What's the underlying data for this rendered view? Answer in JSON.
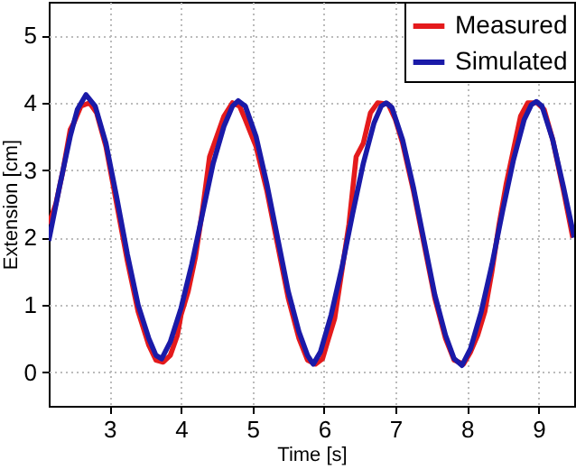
{
  "chart_data": {
    "type": "line",
    "xlabel": "Time [s]",
    "ylabel": "Extension [cm]",
    "xlim": [
      2.15,
      9.5
    ],
    "ylim": [
      -0.5,
      5.5
    ],
    "xticks": [
      3,
      4,
      5,
      6,
      7,
      8,
      9
    ],
    "yticks": [
      0,
      1,
      2,
      3,
      4,
      5
    ],
    "grid": true,
    "legend": "top right",
    "line_style": "solid",
    "marker": "none",
    "series": [
      {
        "name": "Measured",
        "color": "#e41a1c",
        "x": [
          2.15,
          2.25,
          2.35,
          2.45,
          2.5,
          2.6,
          2.72,
          2.82,
          2.95,
          3.1,
          3.25,
          3.4,
          3.55,
          3.65,
          3.75,
          3.85,
          3.95,
          4.0,
          4.1,
          4.2,
          4.3,
          4.4,
          4.5,
          4.6,
          4.72,
          4.82,
          4.9,
          5.05,
          5.2,
          5.35,
          5.5,
          5.65,
          5.77,
          5.88,
          5.98,
          6.05,
          6.15,
          6.25,
          6.35,
          6.45,
          6.55,
          6.65,
          6.75,
          6.9,
          7.0,
          7.1,
          7.25,
          7.4,
          7.55,
          7.7,
          7.82,
          7.95,
          8.05,
          8.15,
          8.25,
          8.35,
          8.45,
          8.55,
          8.65,
          8.75,
          8.85,
          8.98,
          9.08,
          9.2,
          9.35,
          9.48
        ],
        "values": [
          2.2,
          2.5,
          3.0,
          3.6,
          3.7,
          3.95,
          4.0,
          3.85,
          3.35,
          2.5,
          1.65,
          0.9,
          0.4,
          0.18,
          0.15,
          0.25,
          0.55,
          0.85,
          1.2,
          1.7,
          2.4,
          3.2,
          3.5,
          3.8,
          4.0,
          3.95,
          3.75,
          3.35,
          2.7,
          1.9,
          1.1,
          0.5,
          0.18,
          0.12,
          0.2,
          0.45,
          0.8,
          1.5,
          2.2,
          3.2,
          3.4,
          3.85,
          4.0,
          3.98,
          3.75,
          3.4,
          2.7,
          1.9,
          1.1,
          0.5,
          0.18,
          0.12,
          0.3,
          0.55,
          0.9,
          1.5,
          2.2,
          2.8,
          3.3,
          3.8,
          4.0,
          4.0,
          3.9,
          3.45,
          2.7,
          2.0
        ]
      },
      {
        "name": "Simulated",
        "color": "#1a1aa8",
        "x": [
          2.15,
          2.3,
          2.45,
          2.55,
          2.67,
          2.8,
          2.95,
          3.1,
          3.25,
          3.4,
          3.55,
          3.65,
          3.73,
          3.85,
          4.0,
          4.15,
          4.3,
          4.45,
          4.6,
          4.72,
          4.8,
          4.9,
          5.05,
          5.2,
          5.35,
          5.5,
          5.65,
          5.77,
          5.85,
          5.95,
          6.1,
          6.25,
          6.4,
          6.55,
          6.7,
          6.8,
          6.87,
          6.95,
          7.1,
          7.25,
          7.4,
          7.55,
          7.7,
          7.82,
          7.93,
          8.05,
          8.2,
          8.35,
          8.5,
          8.65,
          8.8,
          8.9,
          8.97,
          9.05,
          9.2,
          9.35,
          9.5
        ],
        "values": [
          1.95,
          2.75,
          3.5,
          3.9,
          4.12,
          3.95,
          3.4,
          2.6,
          1.75,
          1.0,
          0.5,
          0.25,
          0.2,
          0.45,
          0.95,
          1.6,
          2.35,
          3.1,
          3.65,
          3.95,
          4.03,
          3.95,
          3.5,
          2.8,
          2.0,
          1.2,
          0.6,
          0.25,
          0.12,
          0.3,
          0.85,
          1.55,
          2.35,
          3.1,
          3.7,
          3.95,
          4.0,
          3.93,
          3.45,
          2.75,
          1.95,
          1.15,
          0.55,
          0.2,
          0.1,
          0.35,
          0.9,
          1.6,
          2.4,
          3.15,
          3.75,
          3.97,
          4.02,
          3.95,
          3.45,
          2.75,
          2.0
        ]
      }
    ]
  }
}
